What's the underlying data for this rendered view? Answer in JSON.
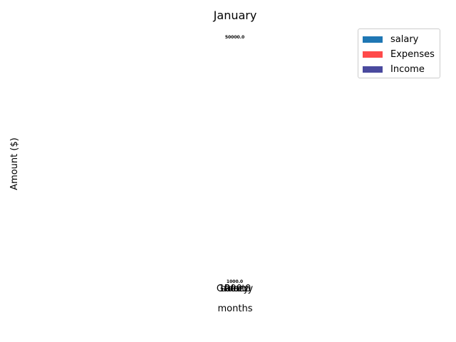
{
  "chart_data": {
    "type": "bar",
    "title": "January",
    "xlabel": "months",
    "ylabel": "Amount ($)",
    "categories": [
      "1000.0",
      "salary",
      "Rent",
      "Grocery"
    ],
    "series": [
      {
        "name": "salary",
        "color": "#1f77b4",
        "values": [
          null,
          50000.0,
          null,
          null
        ]
      },
      {
        "name": "Expenses",
        "color": "#ff4a4a",
        "values": [
          null,
          null,
          1000.0,
          null
        ]
      },
      {
        "name": "Income",
        "color": "#4a4a9e",
        "values": [
          null,
          null,
          null,
          null
        ]
      }
    ],
    "data_labels": [
      "50000.0",
      "1000.0"
    ],
    "ylim": [
      0,
      50000
    ],
    "grid": false,
    "legend_position": "top-right"
  }
}
